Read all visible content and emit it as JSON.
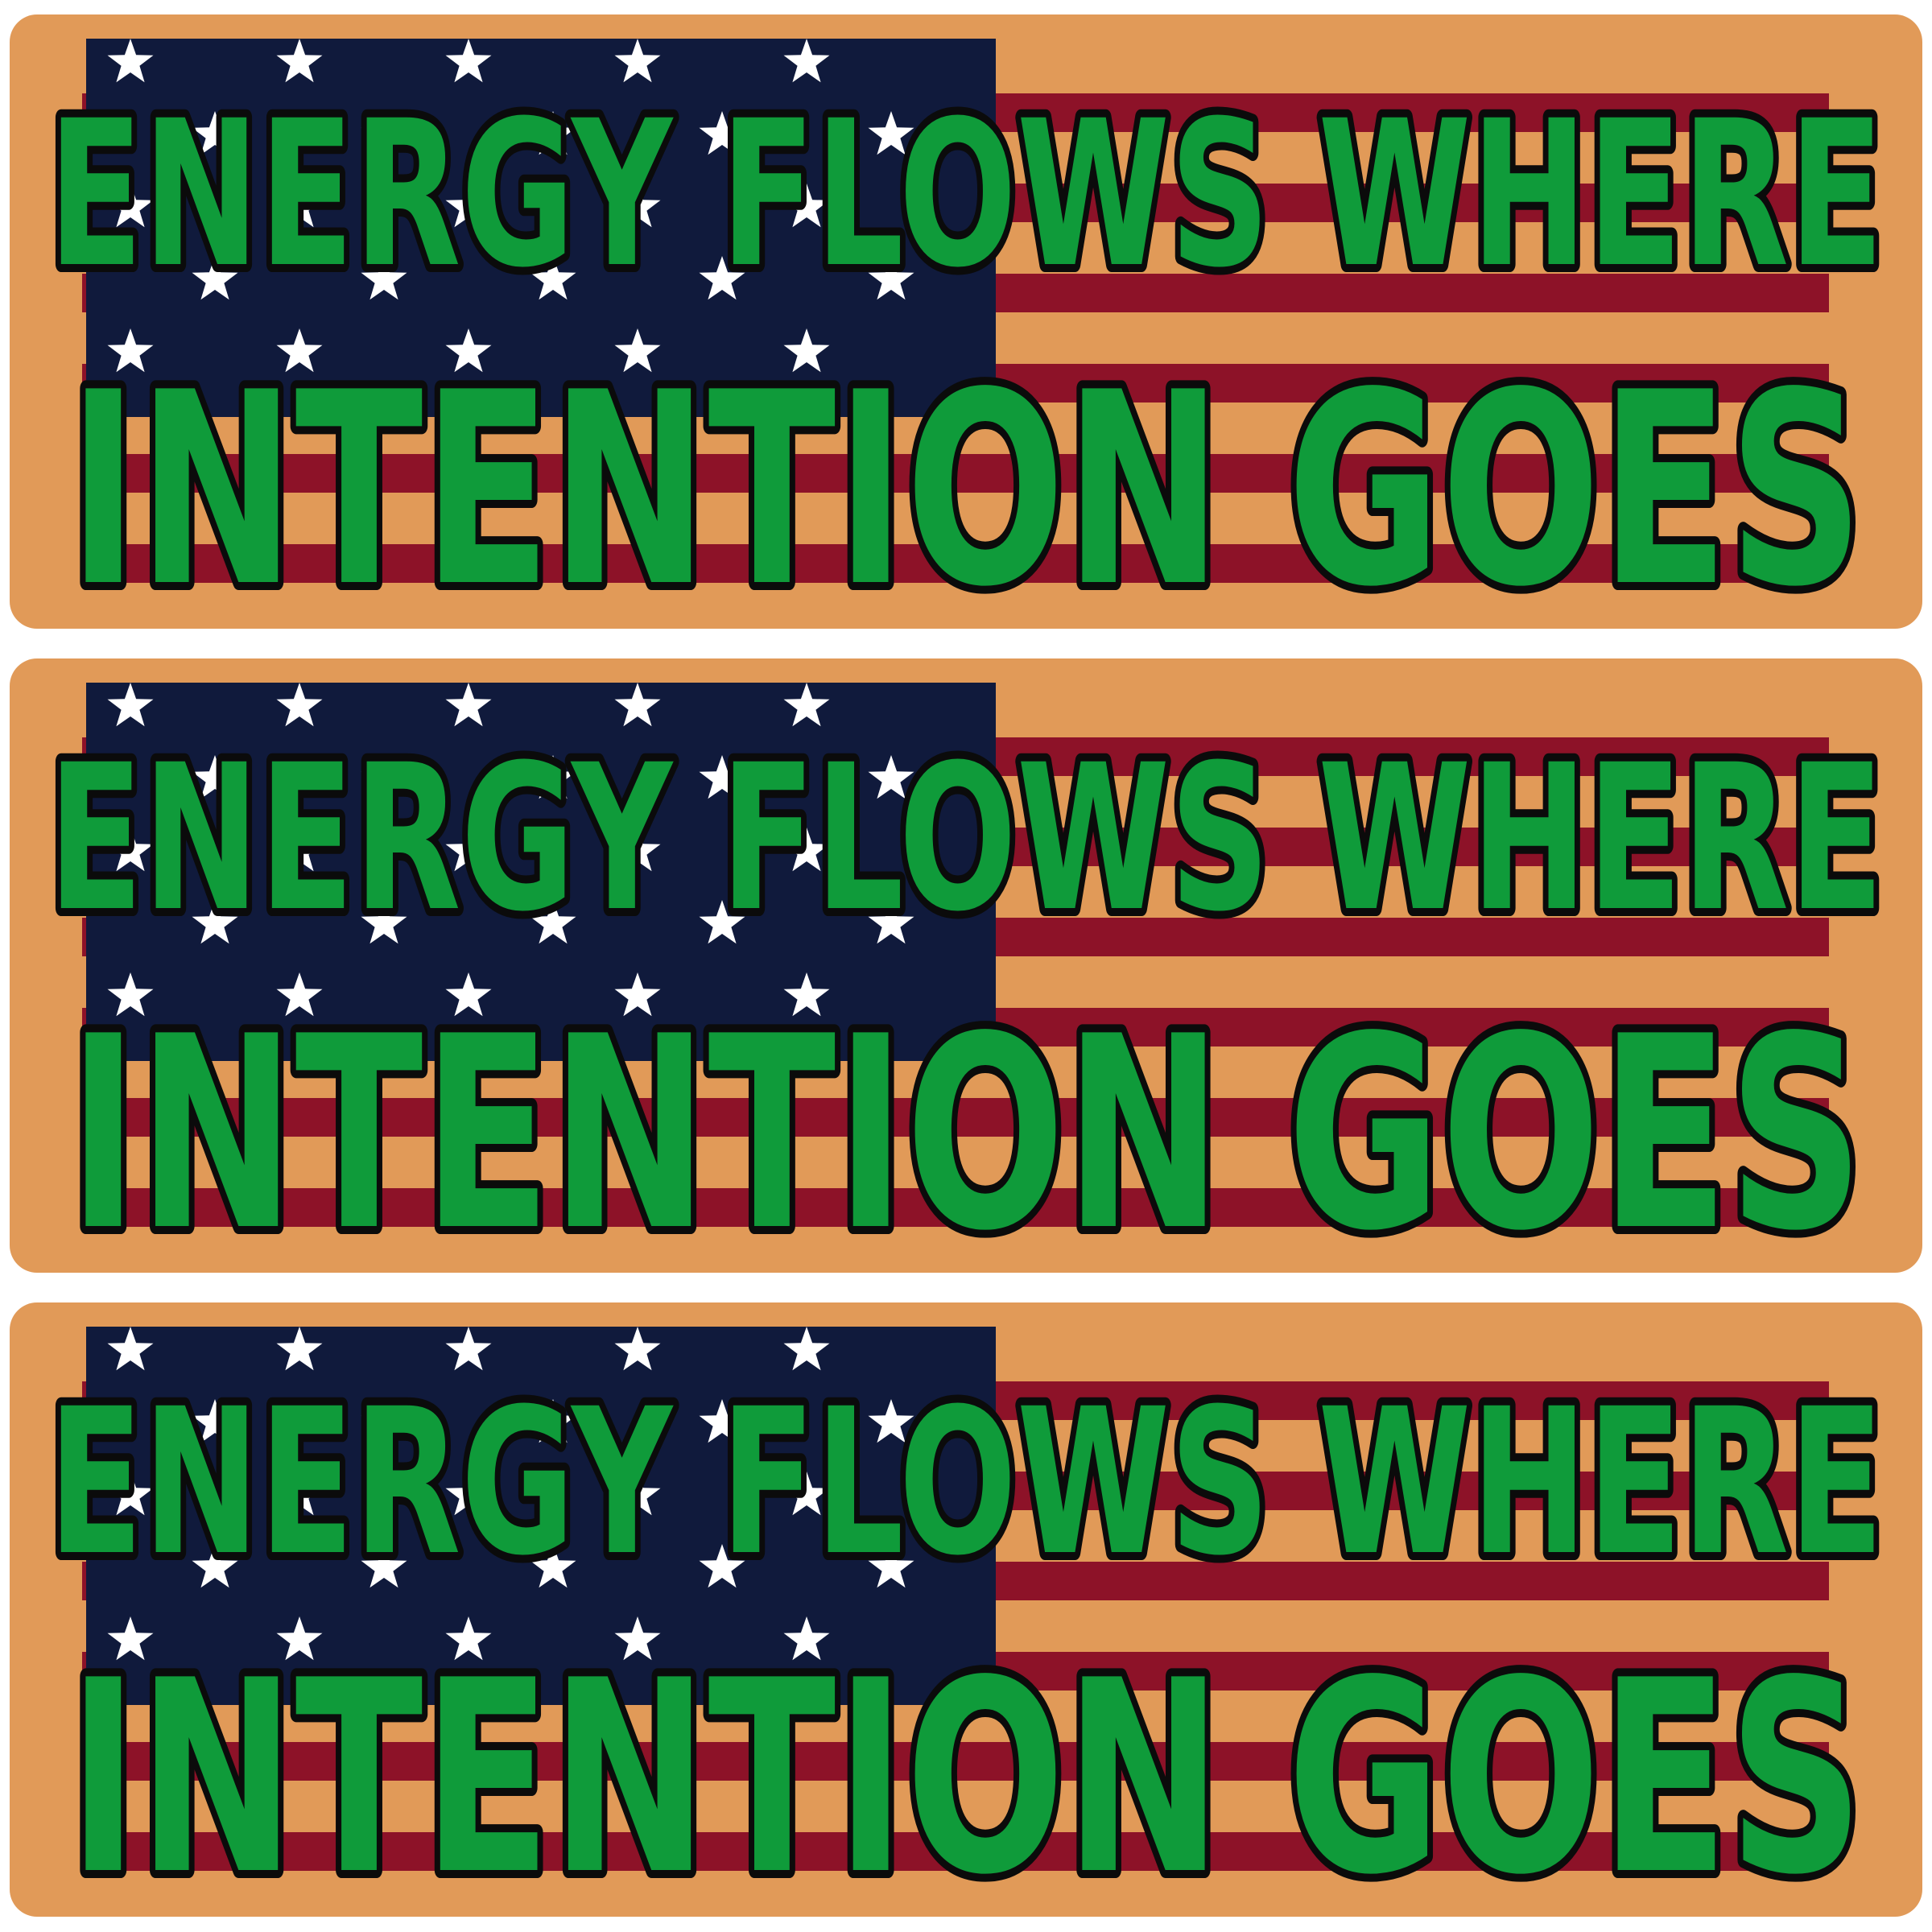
{
  "stickers": [
    {
      "line1": "ENERGY FLOWS WHERE",
      "line2": "INTENTION GOES"
    },
    {
      "line1": "ENERGY FLOWS WHERE",
      "line2": "INTENTION GOES"
    },
    {
      "line1": "ENERGY FLOWS WHERE",
      "line2": "INTENTION GOES"
    }
  ],
  "colors": {
    "background": "#e19a58",
    "stripe_red": "#8d1228",
    "stripe_tan": "#e19a58",
    "canton_blue": "#101a3c",
    "star": "#ffffff",
    "text_fill": "#0f9b3a",
    "text_outline": "#0b0b0b"
  },
  "icons": {
    "flag": "american-flag-icon",
    "star": "star-icon"
  }
}
